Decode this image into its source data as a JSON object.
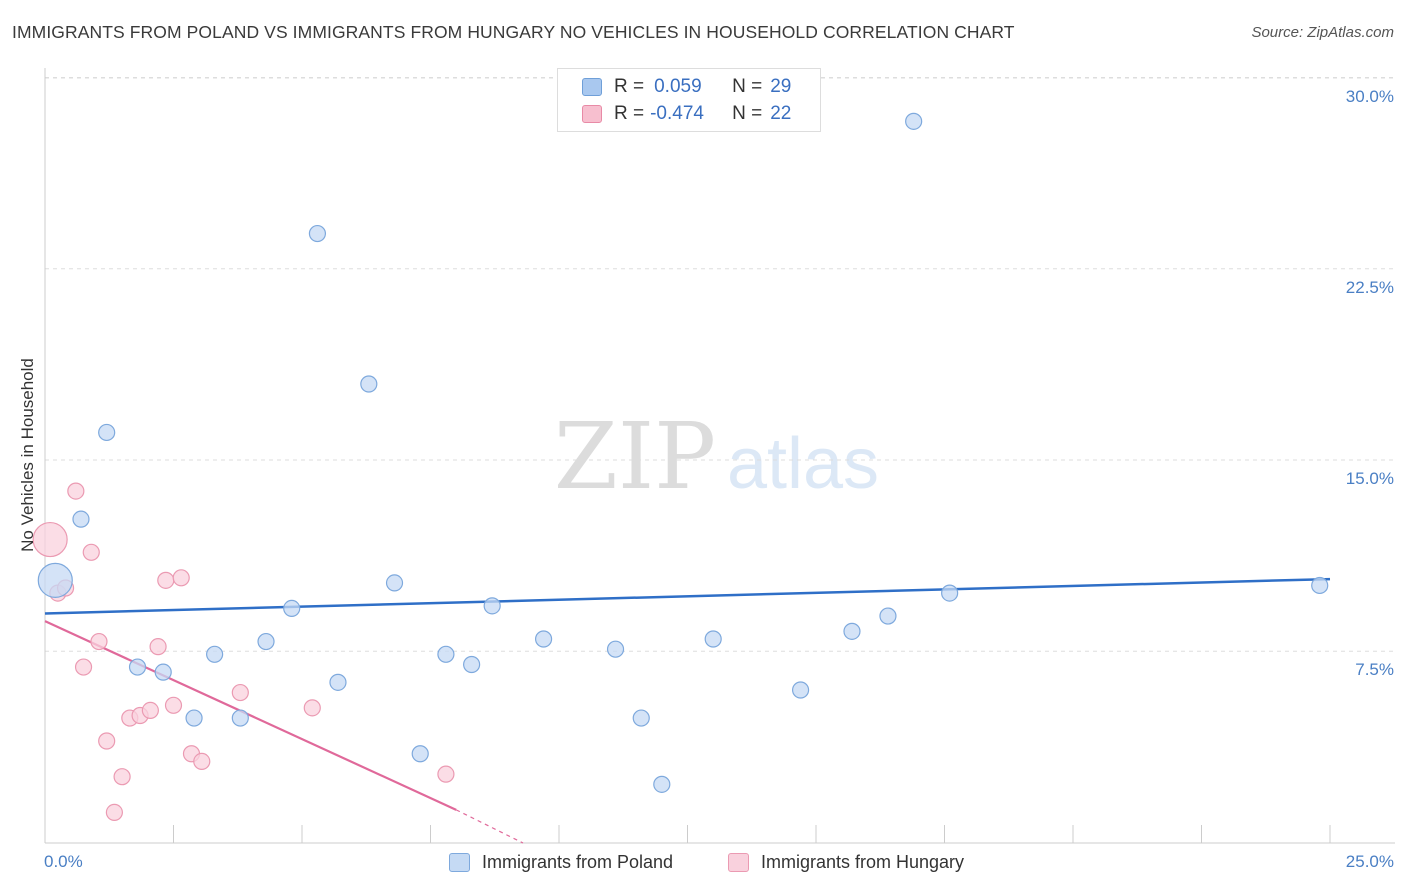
{
  "title": "IMMIGRANTS FROM POLAND VS IMMIGRANTS FROM HUNGARY NO VEHICLES IN HOUSEHOLD CORRELATION CHART",
  "source": "Source: ZipAtlas.com",
  "watermark": {
    "zip": "ZIP",
    "atlas": "atlas"
  },
  "legend": {
    "rows": [
      {
        "r_label": "R =",
        "r_value": "0.059",
        "n_label": "N =",
        "n_value": "29",
        "color": "#a9c8ef",
        "border": "#6f9fd8"
      },
      {
        "r_label": "R =",
        "r_value": "-0.474",
        "n_label": "N =",
        "n_value": "22",
        "color": "#f7bfcf",
        "border": "#e88aa6"
      }
    ]
  },
  "colors": {
    "poland_fill": "#c5daf4",
    "poland_stroke": "#7ea9dd",
    "poland_line": "#2f6fc7",
    "hungary_fill": "#f9d1dd",
    "hungary_stroke": "#eb9ab2",
    "hungary_line": "#e0699a",
    "grid": "#dddddd",
    "tick": "#4a7fc4"
  },
  "chart_data": {
    "type": "scatter",
    "title": "IMMIGRANTS FROM POLAND VS IMMIGRANTS FROM HUNGARY NO VEHICLES IN HOUSEHOLD CORRELATION CHART",
    "xlabel": "",
    "ylabel": "No Vehicles in Household",
    "xlim": [
      0,
      25
    ],
    "ylim": [
      0,
      30
    ],
    "x_tick_labels": [
      "0.0%",
      "25.0%"
    ],
    "y_ticks": [
      7.5,
      15.0,
      22.5,
      30.0
    ],
    "y_tick_labels": [
      "7.5%",
      "15.0%",
      "22.5%",
      "30.0%"
    ],
    "series": [
      {
        "name": "Immigrants from Poland",
        "r": 0.059,
        "n": 29,
        "trend": {
          "x": [
            0,
            25
          ],
          "y": [
            9.0,
            10.35
          ]
        },
        "points": [
          {
            "x": 0.2,
            "y": 10.3,
            "size": "large"
          },
          {
            "x": 0.7,
            "y": 12.7
          },
          {
            "x": 1.2,
            "y": 16.1
          },
          {
            "x": 1.8,
            "y": 6.9
          },
          {
            "x": 2.3,
            "y": 6.7
          },
          {
            "x": 2.9,
            "y": 4.9
          },
          {
            "x": 3.3,
            "y": 7.4
          },
          {
            "x": 3.8,
            "y": 4.9
          },
          {
            "x": 4.3,
            "y": 7.9
          },
          {
            "x": 4.8,
            "y": 9.2
          },
          {
            "x": 5.3,
            "y": 23.9
          },
          {
            "x": 5.7,
            "y": 6.3
          },
          {
            "x": 6.3,
            "y": 18.0
          },
          {
            "x": 6.8,
            "y": 10.2
          },
          {
            "x": 7.3,
            "y": 3.5
          },
          {
            "x": 7.8,
            "y": 7.4
          },
          {
            "x": 8.3,
            "y": 7.0
          },
          {
            "x": 8.7,
            "y": 9.3
          },
          {
            "x": 9.7,
            "y": 8.0
          },
          {
            "x": 11.1,
            "y": 7.6
          },
          {
            "x": 11.6,
            "y": 4.9
          },
          {
            "x": 12.0,
            "y": 2.3
          },
          {
            "x": 13.0,
            "y": 8.0
          },
          {
            "x": 14.7,
            "y": 6.0
          },
          {
            "x": 15.7,
            "y": 8.3
          },
          {
            "x": 16.4,
            "y": 8.9
          },
          {
            "x": 16.9,
            "y": 28.3
          },
          {
            "x": 17.6,
            "y": 9.8
          },
          {
            "x": 24.8,
            "y": 10.1
          }
        ]
      },
      {
        "name": "Immigrants from Hungary",
        "r": -0.474,
        "n": 22,
        "trend": {
          "x": [
            0,
            8.0
          ],
          "y": [
            8.7,
            1.3
          ],
          "dashed_extension": {
            "x": [
              8.0,
              9.3
            ],
            "y": [
              1.3,
              0.0
            ]
          }
        },
        "points": [
          {
            "x": 0.1,
            "y": 11.9,
            "size": "large"
          },
          {
            "x": 0.25,
            "y": 9.8
          },
          {
            "x": 0.4,
            "y": 10.0
          },
          {
            "x": 0.6,
            "y": 13.8
          },
          {
            "x": 0.75,
            "y": 6.9
          },
          {
            "x": 0.9,
            "y": 11.4
          },
          {
            "x": 1.05,
            "y": 7.9
          },
          {
            "x": 1.2,
            "y": 4.0
          },
          {
            "x": 1.35,
            "y": 1.2
          },
          {
            "x": 1.5,
            "y": 2.6
          },
          {
            "x": 1.65,
            "y": 4.9
          },
          {
            "x": 1.85,
            "y": 5.0
          },
          {
            "x": 2.05,
            "y": 5.2
          },
          {
            "x": 2.2,
            "y": 7.7
          },
          {
            "x": 2.35,
            "y": 10.3
          },
          {
            "x": 2.5,
            "y": 5.4
          },
          {
            "x": 2.65,
            "y": 10.4
          },
          {
            "x": 2.85,
            "y": 3.5
          },
          {
            "x": 3.05,
            "y": 3.2
          },
          {
            "x": 3.8,
            "y": 5.9
          },
          {
            "x": 5.2,
            "y": 5.3
          },
          {
            "x": 7.8,
            "y": 2.7
          }
        ]
      }
    ]
  },
  "bottom_legend": [
    {
      "label": "Immigrants from Poland"
    },
    {
      "label": "Immigrants from Hungary"
    }
  ]
}
